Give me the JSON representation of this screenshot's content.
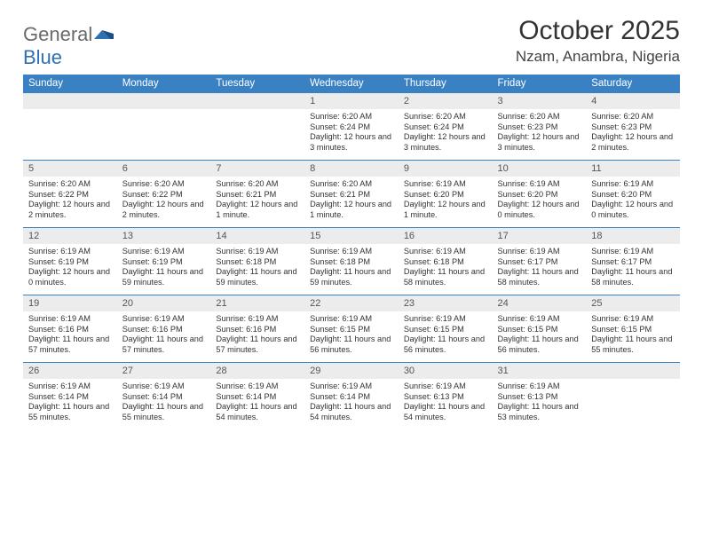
{
  "logo": {
    "text_gray": "General",
    "text_blue": "Blue"
  },
  "title": "October 2025",
  "location": "Nzam, Anambra, Nigeria",
  "colors": {
    "header_bg": "#3a81c4",
    "header_fg": "#ffffff",
    "daynum_bg": "#ececec",
    "border": "#3a81c4",
    "logo_gray": "#6a6a6a",
    "logo_blue": "#2f70b3"
  },
  "day_headers": [
    "Sunday",
    "Monday",
    "Tuesday",
    "Wednesday",
    "Thursday",
    "Friday",
    "Saturday"
  ],
  "weeks": [
    [
      {
        "day": null
      },
      {
        "day": null
      },
      {
        "day": null
      },
      {
        "day": 1,
        "sunrise": "6:20 AM",
        "sunset": "6:24 PM",
        "daylight": "12 hours and 3 minutes."
      },
      {
        "day": 2,
        "sunrise": "6:20 AM",
        "sunset": "6:24 PM",
        "daylight": "12 hours and 3 minutes."
      },
      {
        "day": 3,
        "sunrise": "6:20 AM",
        "sunset": "6:23 PM",
        "daylight": "12 hours and 3 minutes."
      },
      {
        "day": 4,
        "sunrise": "6:20 AM",
        "sunset": "6:23 PM",
        "daylight": "12 hours and 2 minutes."
      }
    ],
    [
      {
        "day": 5,
        "sunrise": "6:20 AM",
        "sunset": "6:22 PM",
        "daylight": "12 hours and 2 minutes."
      },
      {
        "day": 6,
        "sunrise": "6:20 AM",
        "sunset": "6:22 PM",
        "daylight": "12 hours and 2 minutes."
      },
      {
        "day": 7,
        "sunrise": "6:20 AM",
        "sunset": "6:21 PM",
        "daylight": "12 hours and 1 minute."
      },
      {
        "day": 8,
        "sunrise": "6:20 AM",
        "sunset": "6:21 PM",
        "daylight": "12 hours and 1 minute."
      },
      {
        "day": 9,
        "sunrise": "6:19 AM",
        "sunset": "6:20 PM",
        "daylight": "12 hours and 1 minute."
      },
      {
        "day": 10,
        "sunrise": "6:19 AM",
        "sunset": "6:20 PM",
        "daylight": "12 hours and 0 minutes."
      },
      {
        "day": 11,
        "sunrise": "6:19 AM",
        "sunset": "6:20 PM",
        "daylight": "12 hours and 0 minutes."
      }
    ],
    [
      {
        "day": 12,
        "sunrise": "6:19 AM",
        "sunset": "6:19 PM",
        "daylight": "12 hours and 0 minutes."
      },
      {
        "day": 13,
        "sunrise": "6:19 AM",
        "sunset": "6:19 PM",
        "daylight": "11 hours and 59 minutes."
      },
      {
        "day": 14,
        "sunrise": "6:19 AM",
        "sunset": "6:18 PM",
        "daylight": "11 hours and 59 minutes."
      },
      {
        "day": 15,
        "sunrise": "6:19 AM",
        "sunset": "6:18 PM",
        "daylight": "11 hours and 59 minutes."
      },
      {
        "day": 16,
        "sunrise": "6:19 AM",
        "sunset": "6:18 PM",
        "daylight": "11 hours and 58 minutes."
      },
      {
        "day": 17,
        "sunrise": "6:19 AM",
        "sunset": "6:17 PM",
        "daylight": "11 hours and 58 minutes."
      },
      {
        "day": 18,
        "sunrise": "6:19 AM",
        "sunset": "6:17 PM",
        "daylight": "11 hours and 58 minutes."
      }
    ],
    [
      {
        "day": 19,
        "sunrise": "6:19 AM",
        "sunset": "6:16 PM",
        "daylight": "11 hours and 57 minutes."
      },
      {
        "day": 20,
        "sunrise": "6:19 AM",
        "sunset": "6:16 PM",
        "daylight": "11 hours and 57 minutes."
      },
      {
        "day": 21,
        "sunrise": "6:19 AM",
        "sunset": "6:16 PM",
        "daylight": "11 hours and 57 minutes."
      },
      {
        "day": 22,
        "sunrise": "6:19 AM",
        "sunset": "6:15 PM",
        "daylight": "11 hours and 56 minutes."
      },
      {
        "day": 23,
        "sunrise": "6:19 AM",
        "sunset": "6:15 PM",
        "daylight": "11 hours and 56 minutes."
      },
      {
        "day": 24,
        "sunrise": "6:19 AM",
        "sunset": "6:15 PM",
        "daylight": "11 hours and 56 minutes."
      },
      {
        "day": 25,
        "sunrise": "6:19 AM",
        "sunset": "6:15 PM",
        "daylight": "11 hours and 55 minutes."
      }
    ],
    [
      {
        "day": 26,
        "sunrise": "6:19 AM",
        "sunset": "6:14 PM",
        "daylight": "11 hours and 55 minutes."
      },
      {
        "day": 27,
        "sunrise": "6:19 AM",
        "sunset": "6:14 PM",
        "daylight": "11 hours and 55 minutes."
      },
      {
        "day": 28,
        "sunrise": "6:19 AM",
        "sunset": "6:14 PM",
        "daylight": "11 hours and 54 minutes."
      },
      {
        "day": 29,
        "sunrise": "6:19 AM",
        "sunset": "6:14 PM",
        "daylight": "11 hours and 54 minutes."
      },
      {
        "day": 30,
        "sunrise": "6:19 AM",
        "sunset": "6:13 PM",
        "daylight": "11 hours and 54 minutes."
      },
      {
        "day": 31,
        "sunrise": "6:19 AM",
        "sunset": "6:13 PM",
        "daylight": "11 hours and 53 minutes."
      },
      {
        "day": null
      }
    ]
  ],
  "labels": {
    "sunrise": "Sunrise:",
    "sunset": "Sunset:",
    "daylight": "Daylight:"
  }
}
